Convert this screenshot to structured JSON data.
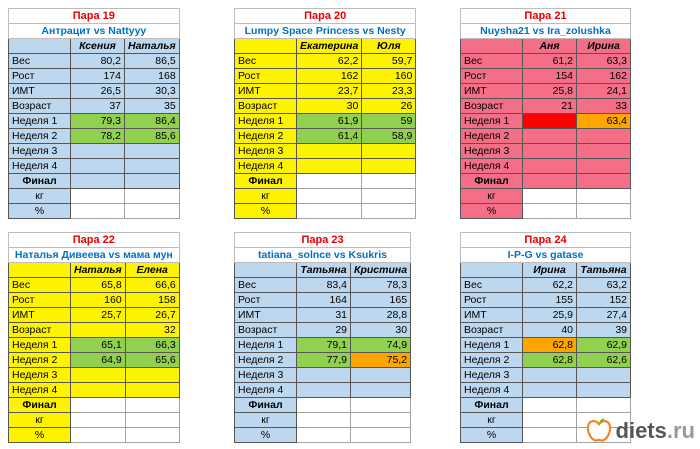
{
  "colors": {
    "blue_theme": "#bdd7ee",
    "yellow_theme": "#fdf200",
    "pink_theme": "#f36e86",
    "week_green": "#92d050",
    "week_orange": "#ffa500",
    "week_red": "#ff0000",
    "title_red": "#e60000",
    "matchup_blue": "#0070c0"
  },
  "logo": {
    "name": "diets",
    "suffix": ".ru"
  },
  "tables": [
    {
      "title": "Пара 19",
      "matchup": "Антрацит vs Nattyyy",
      "theme": "blue",
      "columns": [
        "Ксения",
        "Наталья"
      ],
      "rows": [
        {
          "label": "Вес",
          "values": [
            "80,2",
            "86,5"
          ]
        },
        {
          "label": "Рост",
          "values": [
            "174",
            "168"
          ]
        },
        {
          "label": "ИМТ",
          "values": [
            "26,5",
            "30,3"
          ]
        },
        {
          "label": "Возраст",
          "values": [
            "37",
            "35"
          ]
        },
        {
          "label": "Неделя 1",
          "values": [
            "79,3",
            "86,4"
          ],
          "bg": [
            "green",
            "green"
          ]
        },
        {
          "label": "Неделя 2",
          "values": [
            "78,2",
            "85,6"
          ],
          "bg": [
            "green",
            "green"
          ]
        },
        {
          "label": "Неделя 3",
          "values": [
            "",
            ""
          ]
        },
        {
          "label": "Неделя 4",
          "values": [
            "",
            ""
          ]
        },
        {
          "label": "Финал",
          "values": [
            "",
            ""
          ],
          "bold": true,
          "center": true
        },
        {
          "label": "кг",
          "values": [
            "",
            ""
          ],
          "bg": [
            "white",
            "white"
          ],
          "center": true
        },
        {
          "label": "%",
          "values": [
            "",
            ""
          ],
          "bg": [
            "white",
            "white"
          ],
          "center": true
        }
      ]
    },
    {
      "title": "Пара 20",
      "matchup": "Lumpy Space Princess vs Nesty",
      "theme": "yellow",
      "columns": [
        "Екатерина",
        "Юля"
      ],
      "rows": [
        {
          "label": "Вес",
          "values": [
            "62,2",
            "59,7"
          ]
        },
        {
          "label": "Рост",
          "values": [
            "162",
            "160"
          ]
        },
        {
          "label": "ИМТ",
          "values": [
            "23,7",
            "23,3"
          ]
        },
        {
          "label": "Возраст",
          "values": [
            "30",
            "26"
          ]
        },
        {
          "label": "Неделя 1",
          "values": [
            "61,9",
            "59"
          ],
          "bg": [
            "green",
            "green"
          ]
        },
        {
          "label": "Неделя 2",
          "values": [
            "61,4",
            "58,9"
          ],
          "bg": [
            "green",
            "green"
          ]
        },
        {
          "label": "Неделя 3",
          "values": [
            "",
            ""
          ]
        },
        {
          "label": "Неделя 4",
          "values": [
            "",
            ""
          ]
        },
        {
          "label": "Финал",
          "values": [
            "",
            ""
          ],
          "bg": [
            "white",
            "white"
          ],
          "bold": true,
          "center": true
        },
        {
          "label": "кг",
          "values": [
            "",
            ""
          ],
          "bg": [
            "white",
            "white"
          ],
          "center": true
        },
        {
          "label": "%",
          "values": [
            "",
            ""
          ],
          "bg": [
            "white",
            "white"
          ],
          "center": true
        }
      ]
    },
    {
      "title": "Пара 21",
      "matchup": "Nuysha21 vs Ira_zolushka",
      "theme": "pink",
      "columns": [
        "Аня",
        "Ирина"
      ],
      "rows": [
        {
          "label": "Вес",
          "values": [
            "61,2",
            "63,3"
          ]
        },
        {
          "label": "Рост",
          "values": [
            "154",
            "162"
          ]
        },
        {
          "label": "ИМТ",
          "values": [
            "25,8",
            "24,1"
          ]
        },
        {
          "label": "Возраст",
          "values": [
            "21",
            "33"
          ]
        },
        {
          "label": "Неделя 1",
          "values": [
            "",
            "63,4"
          ],
          "bg": [
            "red",
            "orange"
          ]
        },
        {
          "label": "Неделя 2",
          "values": [
            "",
            ""
          ]
        },
        {
          "label": "Неделя 3",
          "values": [
            "",
            ""
          ]
        },
        {
          "label": "Неделя 4",
          "values": [
            "",
            ""
          ]
        },
        {
          "label": "Финал",
          "values": [
            "",
            ""
          ],
          "bold": true,
          "center": true
        },
        {
          "label": "кг",
          "values": [
            "",
            ""
          ],
          "bg": [
            "white",
            "white"
          ],
          "center": true
        },
        {
          "label": "%",
          "values": [
            "",
            ""
          ],
          "bg": [
            "white",
            "white"
          ],
          "center": true
        }
      ]
    },
    {
      "title": "Пара 22",
      "matchup": "Наталья Дивеева vs мама мун",
      "theme": "yellow",
      "columns": [
        "Наталья",
        "Елена"
      ],
      "rows": [
        {
          "label": "Вес",
          "values": [
            "65,8",
            "66,6"
          ]
        },
        {
          "label": "Рост",
          "values": [
            "160",
            "158"
          ]
        },
        {
          "label": "ИМТ",
          "values": [
            "25,7",
            "26,7"
          ]
        },
        {
          "label": "Возраст",
          "values": [
            "",
            "32"
          ]
        },
        {
          "label": "Неделя 1",
          "values": [
            "65,1",
            "66,3"
          ],
          "bg": [
            "green",
            "green"
          ]
        },
        {
          "label": "Неделя 2",
          "values": [
            "64,9",
            "65,6"
          ],
          "bg": [
            "green",
            "green"
          ]
        },
        {
          "label": "Неделя 3",
          "values": [
            "",
            ""
          ]
        },
        {
          "label": "Неделя 4",
          "values": [
            "",
            ""
          ]
        },
        {
          "label": "Финал",
          "values": [
            "",
            ""
          ],
          "bg": [
            "white",
            "white"
          ],
          "bold": true,
          "center": true
        },
        {
          "label": "кг",
          "values": [
            "",
            ""
          ],
          "bg": [
            "white",
            "white"
          ],
          "center": true
        },
        {
          "label": "%",
          "values": [
            "",
            ""
          ],
          "bg": [
            "white",
            "white"
          ],
          "center": true
        }
      ]
    },
    {
      "title": "Пара 23",
      "matchup": "tatiana_solnce vs Ksukris",
      "theme": "blue",
      "columns": [
        "Татьяна",
        "Кристина"
      ],
      "rows": [
        {
          "label": "Вес",
          "values": [
            "83,4",
            "78,3"
          ]
        },
        {
          "label": "Рост",
          "values": [
            "164",
            "165"
          ]
        },
        {
          "label": "ИМТ",
          "values": [
            "31",
            "28,8"
          ]
        },
        {
          "label": "Возраст",
          "values": [
            "29",
            "30"
          ]
        },
        {
          "label": "Неделя 1",
          "values": [
            "79,1",
            "74,9"
          ],
          "bg": [
            "green",
            "green"
          ]
        },
        {
          "label": "Неделя 2",
          "values": [
            "77,9",
            "75,2"
          ],
          "bg": [
            "green",
            "orange"
          ]
        },
        {
          "label": "Неделя 3",
          "values": [
            "",
            ""
          ]
        },
        {
          "label": "Неделя 4",
          "values": [
            "",
            ""
          ]
        },
        {
          "label": "Финал",
          "values": [
            "",
            ""
          ],
          "bg": [
            "white",
            "white"
          ],
          "bold": true,
          "center": true
        },
        {
          "label": "кг",
          "values": [
            "",
            ""
          ],
          "bg": [
            "white",
            "white"
          ],
          "center": true
        },
        {
          "label": "%",
          "values": [
            "",
            ""
          ],
          "bg": [
            "white",
            "white"
          ],
          "center": true
        }
      ]
    },
    {
      "title": "Пара 24",
      "matchup": "I-P-G vs gatase",
      "theme": "blue",
      "columns": [
        "Ирина",
        "Татьяна"
      ],
      "rows": [
        {
          "label": "Вес",
          "values": [
            "62,2",
            "63,2"
          ]
        },
        {
          "label": "Рост",
          "values": [
            "155",
            "152"
          ]
        },
        {
          "label": "ИМТ",
          "values": [
            "25,9",
            "27,4"
          ]
        },
        {
          "label": "Возраст",
          "values": [
            "40",
            "39"
          ]
        },
        {
          "label": "Неделя 1",
          "values": [
            "62,8",
            "62,9"
          ],
          "bg": [
            "orange",
            "green"
          ]
        },
        {
          "label": "Неделя 2",
          "values": [
            "62,8",
            "62,6"
          ],
          "bg": [
            "green",
            "green"
          ]
        },
        {
          "label": "Неделя 3",
          "values": [
            "",
            ""
          ]
        },
        {
          "label": "Неделя 4",
          "values": [
            "",
            ""
          ]
        },
        {
          "label": "Финал",
          "values": [
            "",
            ""
          ],
          "bg": [
            "white",
            "white"
          ],
          "bold": true,
          "center": true
        },
        {
          "label": "кг",
          "values": [
            "",
            ""
          ],
          "bg": [
            "white",
            "white"
          ],
          "center": true
        },
        {
          "label": "%",
          "values": [
            "",
            ""
          ],
          "bg": [
            "white",
            "white"
          ],
          "center": true
        }
      ]
    }
  ]
}
